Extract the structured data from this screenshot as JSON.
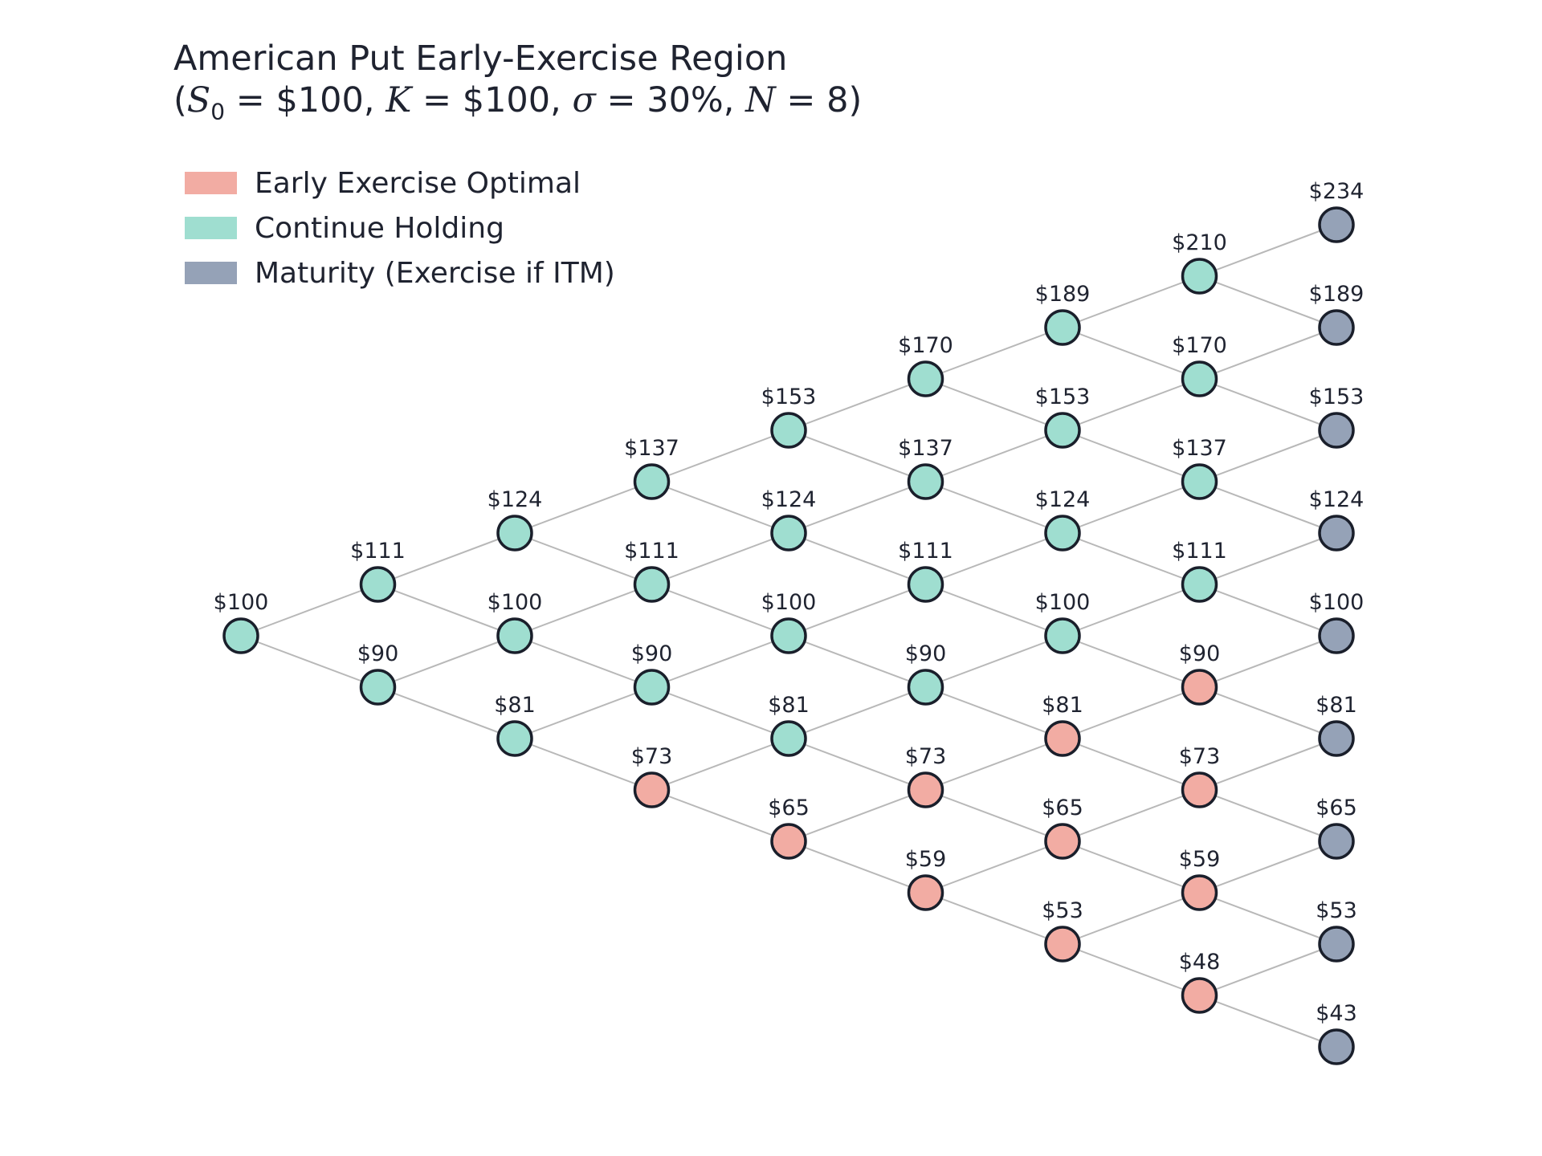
{
  "title": {
    "line1": "American Put Early-Exercise Region",
    "line2_parts": {
      "open": "(",
      "s": "S",
      "s_sub": "0",
      "eq1": " = $100, ",
      "k": "K",
      "eq2": " = $100, ",
      "sigma": "σ",
      "eq3": " = 30%, ",
      "n": "N",
      "eq4": " = 8)"
    }
  },
  "legend": {
    "items": [
      {
        "label": "Early Exercise Optimal",
        "color": "#f2aca3"
      },
      {
        "label": "Continue Holding",
        "color": "#9fded0"
      },
      {
        "label": "Maturity (Exercise if ITM)",
        "color": "#95a2b7"
      }
    ]
  },
  "colors": {
    "exercise": "#f2aca3",
    "continue": "#9fded0",
    "maturity": "#95a2b7",
    "edge": "#b8b8b8",
    "node_stroke": "#1a1f2b"
  },
  "tree": {
    "steps": 8,
    "levels": [
      [
        {
          "label": "$100",
          "state": "continue"
        }
      ],
      [
        {
          "label": "$111",
          "state": "continue"
        },
        {
          "label": "$90",
          "state": "continue"
        }
      ],
      [
        {
          "label": "$124",
          "state": "continue"
        },
        {
          "label": "$100",
          "state": "continue"
        },
        {
          "label": "$81",
          "state": "continue"
        }
      ],
      [
        {
          "label": "$137",
          "state": "continue"
        },
        {
          "label": "$111",
          "state": "continue"
        },
        {
          "label": "$90",
          "state": "continue"
        },
        {
          "label": "$73",
          "state": "exercise"
        }
      ],
      [
        {
          "label": "$153",
          "state": "continue"
        },
        {
          "label": "$124",
          "state": "continue"
        },
        {
          "label": "$100",
          "state": "continue"
        },
        {
          "label": "$81",
          "state": "continue"
        },
        {
          "label": "$65",
          "state": "exercise"
        }
      ],
      [
        {
          "label": "$170",
          "state": "continue"
        },
        {
          "label": "$137",
          "state": "continue"
        },
        {
          "label": "$111",
          "state": "continue"
        },
        {
          "label": "$90",
          "state": "continue"
        },
        {
          "label": "$73",
          "state": "exercise"
        },
        {
          "label": "$59",
          "state": "exercise"
        }
      ],
      [
        {
          "label": "$189",
          "state": "continue"
        },
        {
          "label": "$153",
          "state": "continue"
        },
        {
          "label": "$124",
          "state": "continue"
        },
        {
          "label": "$100",
          "state": "continue"
        },
        {
          "label": "$81",
          "state": "exercise"
        },
        {
          "label": "$65",
          "state": "exercise"
        },
        {
          "label": "$53",
          "state": "exercise"
        }
      ],
      [
        {
          "label": "$210",
          "state": "continue"
        },
        {
          "label": "$170",
          "state": "continue"
        },
        {
          "label": "$137",
          "state": "continue"
        },
        {
          "label": "$111",
          "state": "continue"
        },
        {
          "label": "$90",
          "state": "exercise"
        },
        {
          "label": "$73",
          "state": "exercise"
        },
        {
          "label": "$59",
          "state": "exercise"
        },
        {
          "label": "$48",
          "state": "exercise"
        }
      ],
      [
        {
          "label": "$234",
          "state": "maturity"
        },
        {
          "label": "$189",
          "state": "maturity"
        },
        {
          "label": "$153",
          "state": "maturity"
        },
        {
          "label": "$124",
          "state": "maturity"
        },
        {
          "label": "$100",
          "state": "maturity"
        },
        {
          "label": "$81",
          "state": "maturity"
        },
        {
          "label": "$65",
          "state": "maturity"
        },
        {
          "label": "$53",
          "state": "maturity"
        },
        {
          "label": "$43",
          "state": "maturity"
        }
      ]
    ]
  }
}
